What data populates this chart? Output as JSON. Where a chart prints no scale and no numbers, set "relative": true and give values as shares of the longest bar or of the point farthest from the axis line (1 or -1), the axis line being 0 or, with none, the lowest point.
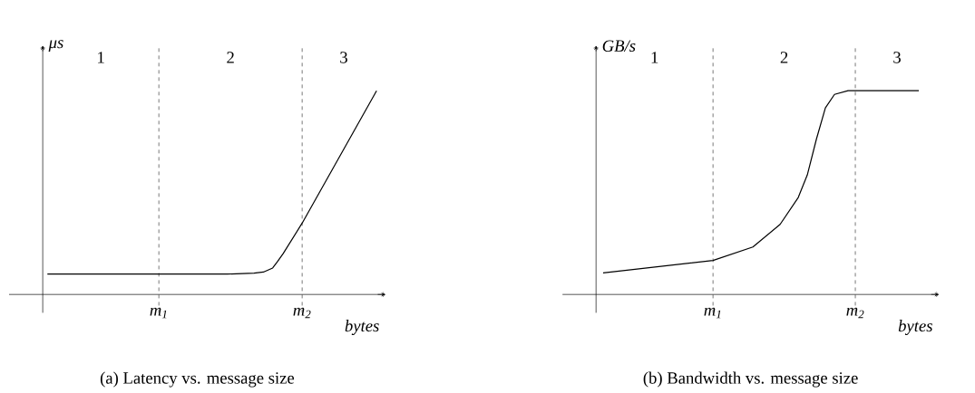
{
  "chart_data": [
    {
      "type": "line",
      "title": "(a) Latency vs. message size",
      "xlabel": "bytes",
      "ylabel": "μs",
      "relative": true,
      "x": [
        0.04,
        1.0,
        1.59,
        1.82,
        1.9,
        1.98,
        2.02,
        2.07,
        2.234,
        2.875
      ],
      "series": [
        {
          "color": "#000000",
          "values": [
            0.1,
            0.1,
            0.1,
            0.105,
            0.11,
            0.13,
            0.16,
            0.2,
            0.35,
            1.0
          ]
        }
      ],
      "xlim": [
        -0.29,
        2.95
      ],
      "xticks": [
        {
          "value": 1,
          "label": "m$_{1}$"
        },
        {
          "value": 2.234,
          "label": "m$_{2}$"
        }
      ],
      "ref_lines": [
        {
          "axis": "x",
          "value": 1,
          "line_style": "dashed"
        },
        {
          "axis": "x",
          "value": 2.234,
          "line_style": "dashed"
        }
      ],
      "annotations": [
        "1",
        "2",
        "3"
      ],
      "marker": "none",
      "line_style": "solid"
    },
    {
      "type": "line",
      "title": "(b) Bandwidth vs. message size",
      "xlabel": "bytes",
      "ylabel": "GB/s",
      "relative": true,
      "x": [
        0.06,
        1.0,
        1.341,
        1.574,
        1.729,
        1.806,
        1.884,
        1.961,
        2.039,
        2.155,
        2.76
      ],
      "series": [
        {
          "color": "#000000",
          "values": [
            0.106,
            0.167,
            0.233,
            0.344,
            0.476,
            0.586,
            0.762,
            0.916,
            0.982,
            1.0,
            1.0
          ]
        }
      ],
      "xlim": [
        -0.287,
        2.93
      ],
      "xticks": [
        {
          "value": 1,
          "label": "m$_{1}$"
        },
        {
          "value": 2.217,
          "label": "m$_{2}$"
        }
      ],
      "ref_lines": [
        {
          "axis": "x",
          "value": 1,
          "line_style": "dashed"
        },
        {
          "axis": "x",
          "value": 2.217,
          "line_style": "dashed"
        }
      ],
      "annotations": [
        "1",
        "2",
        "3"
      ],
      "marker": "none",
      "line_style": "solid"
    }
  ]
}
